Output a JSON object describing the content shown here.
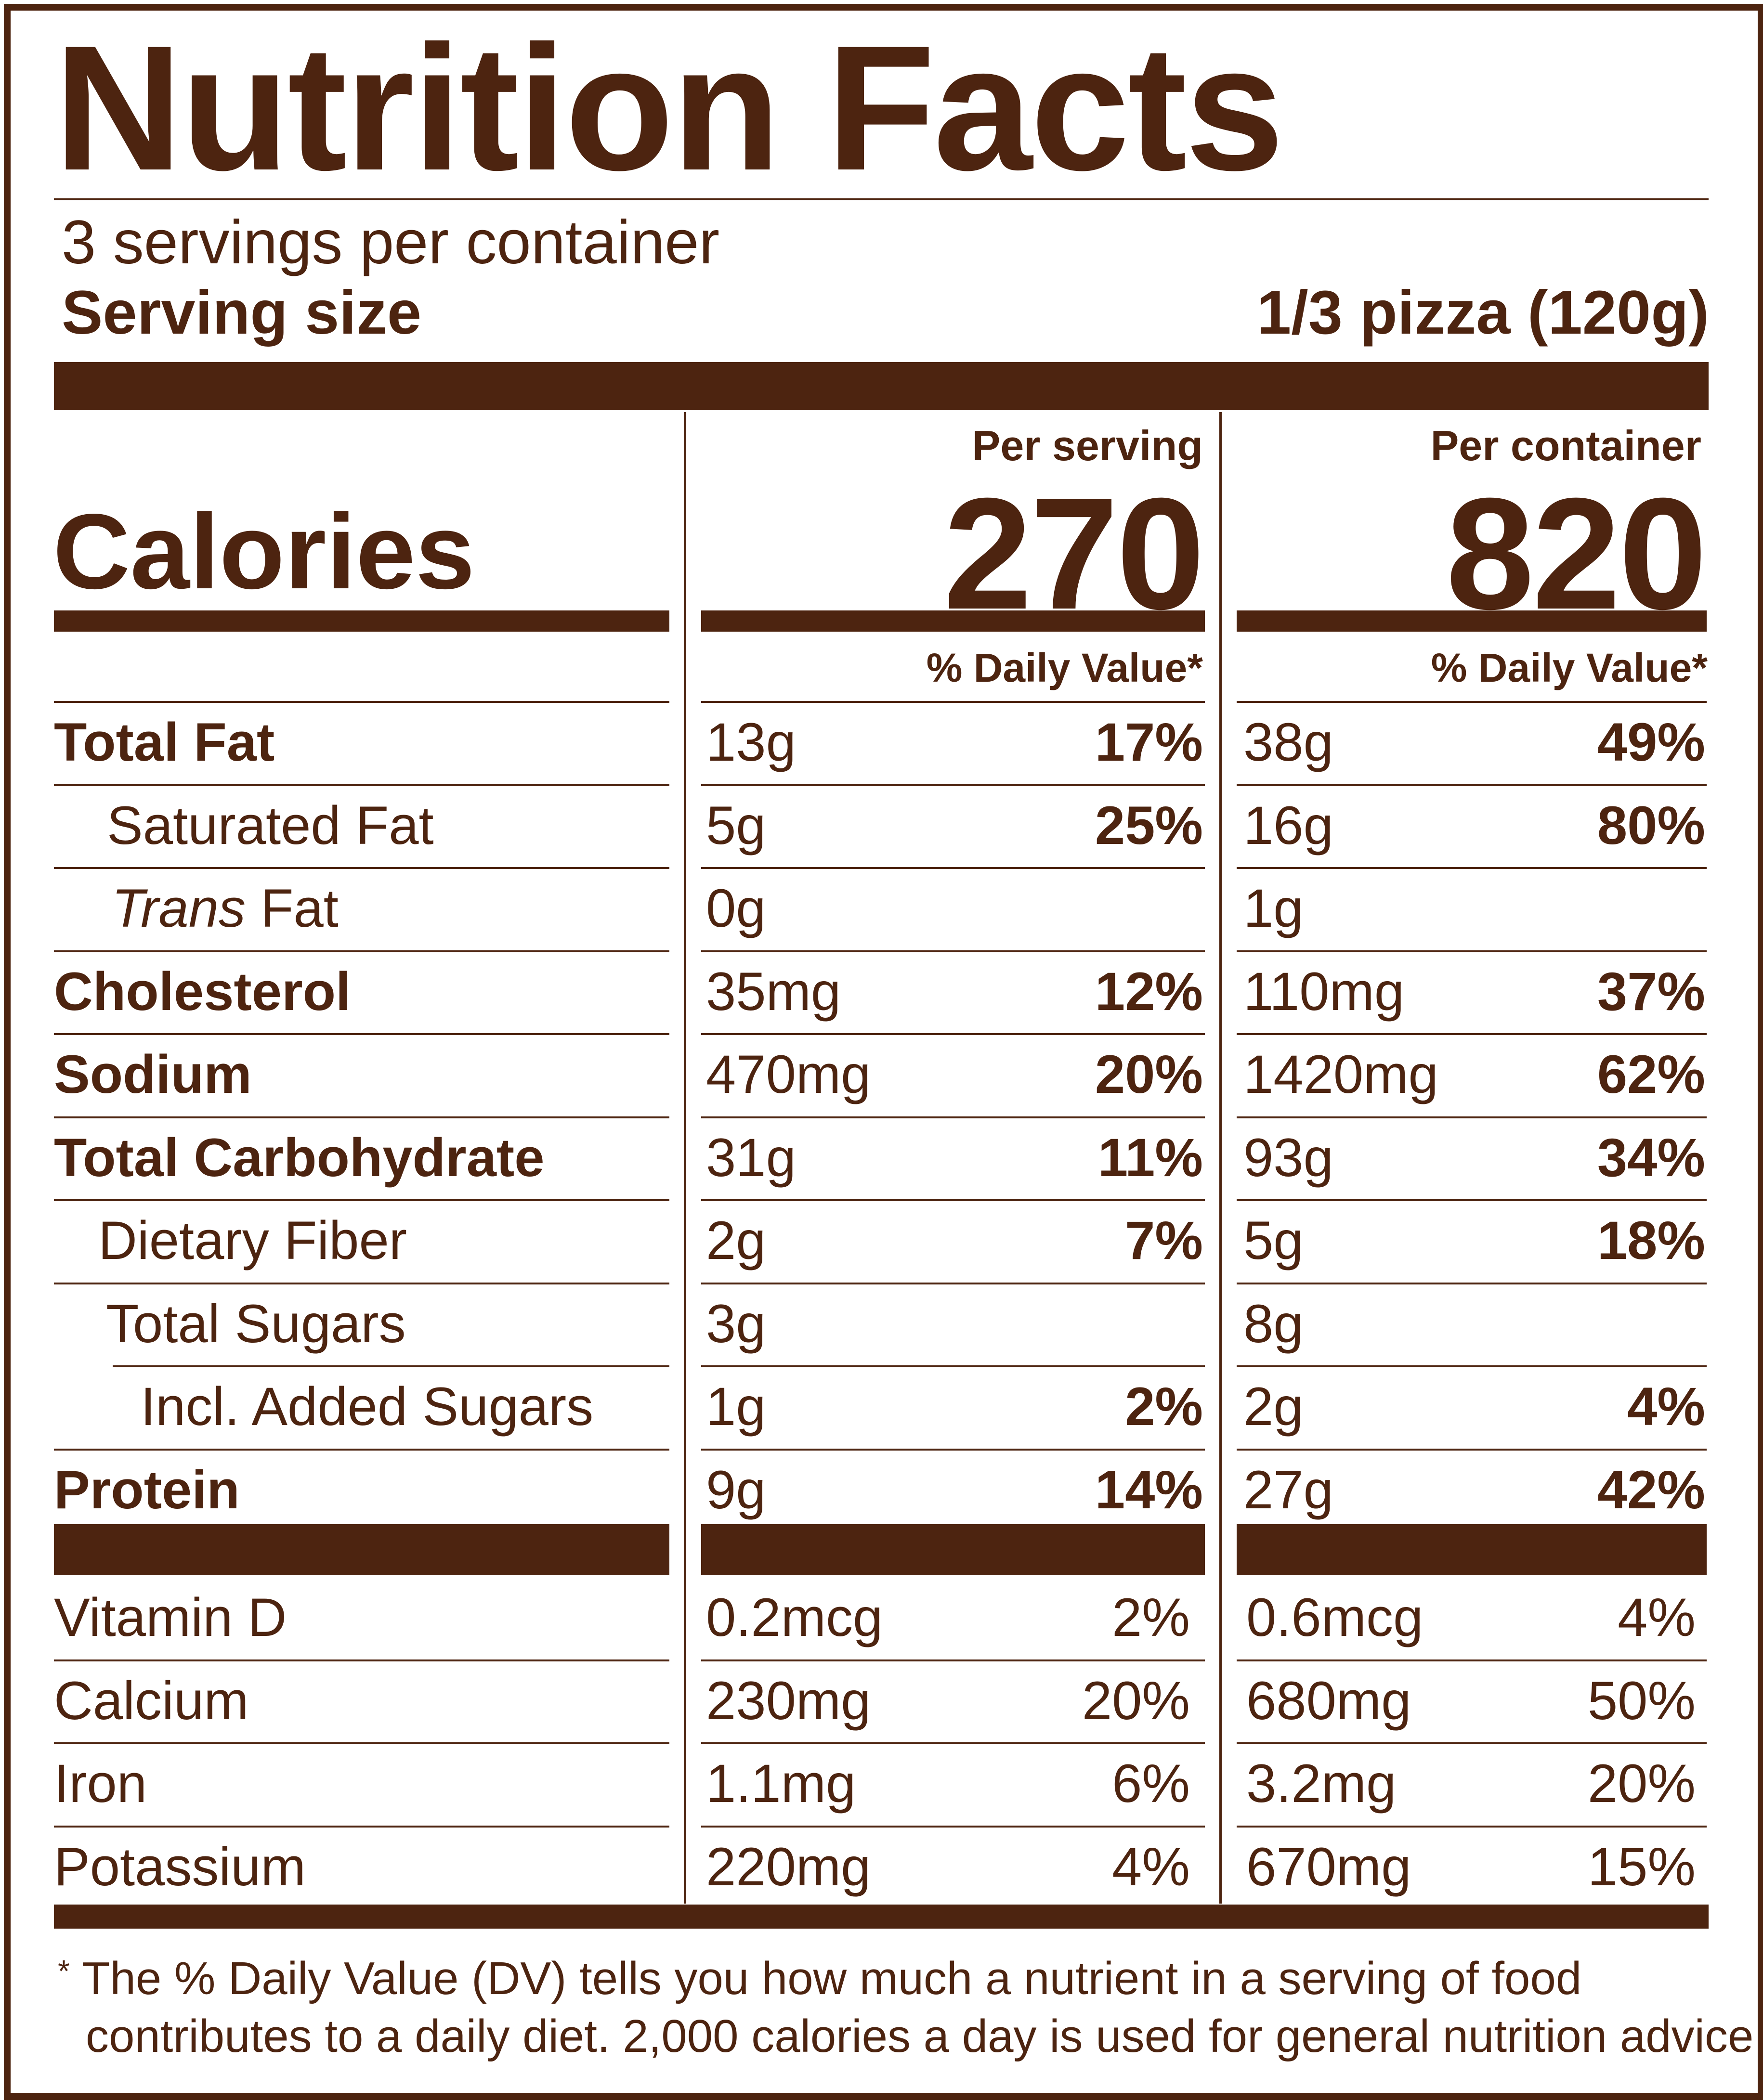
{
  "label": {
    "title": "Nutrition Facts",
    "servings_per_container": "3 servings per container",
    "serving_size_label": "Serving size",
    "serving_size_value": "1/3 pizza (120g)"
  },
  "calories": {
    "label": "Calories",
    "per_serving_header": "Per serving",
    "per_container_header": "Per container",
    "per_serving_value": "270",
    "per_container_value": "820"
  },
  "daily_value_header": "% Daily Value*",
  "nutrients": [
    {
      "name": "Total Fat",
      "italic_prefix": "",
      "serving_amount": "13g",
      "serving_dv": "17%",
      "container_amount": "38g",
      "container_dv": "49%"
    },
    {
      "name": "Saturated Fat",
      "italic_prefix": "",
      "serving_amount": "5g",
      "serving_dv": "25%",
      "container_amount": "16g",
      "container_dv": "80%"
    },
    {
      "name": " Fat",
      "italic_prefix": "Trans",
      "serving_amount": "0g",
      "serving_dv": "",
      "container_amount": "1g",
      "container_dv": ""
    },
    {
      "name": "Cholesterol",
      "italic_prefix": "",
      "serving_amount": "35mg",
      "serving_dv": "12%",
      "container_amount": "110mg",
      "container_dv": "37%"
    },
    {
      "name": "Sodium",
      "italic_prefix": "",
      "serving_amount": "470mg",
      "serving_dv": "20%",
      "container_amount": "1420mg",
      "container_dv": "62%"
    },
    {
      "name": "Total Carbohydrate",
      "italic_prefix": "",
      "serving_amount": "31g",
      "serving_dv": "11%",
      "container_amount": "93g",
      "container_dv": "34%"
    },
    {
      "name": "Dietary Fiber",
      "italic_prefix": "",
      "serving_amount": "2g",
      "serving_dv": "7%",
      "container_amount": "5g",
      "container_dv": "18%"
    },
    {
      "name": "Total Sugars",
      "italic_prefix": "",
      "serving_amount": "3g",
      "serving_dv": "",
      "container_amount": "8g",
      "container_dv": ""
    },
    {
      "name": "Incl. Added Sugars",
      "italic_prefix": "",
      "serving_amount": "1g",
      "serving_dv": "2%",
      "container_amount": "2g",
      "container_dv": "4%"
    },
    {
      "name": "Protein",
      "italic_prefix": "",
      "serving_amount": "9g",
      "serving_dv": "14%",
      "container_amount": "27g",
      "container_dv": "42%"
    }
  ],
  "vitamins": [
    {
      "name": "Vitamin D",
      "serving_amount": "0.2mcg",
      "serving_dv": "2%",
      "container_amount": "0.6mcg",
      "container_dv": "4%"
    },
    {
      "name": "Calcium",
      "serving_amount": "230mg",
      "serving_dv": "20%",
      "container_amount": "680mg",
      "container_dv": "50%"
    },
    {
      "name": "Iron",
      "serving_amount": "1.1mg",
      "serving_dv": "6%",
      "container_amount": "3.2mg",
      "container_dv": "20%"
    },
    {
      "name": "Potassium",
      "serving_amount": "220mg",
      "serving_dv": "4%",
      "container_amount": "670mg",
      "container_dv": "15%"
    }
  ],
  "footnote": {
    "asterisk": "*",
    "line1": "The % Daily Value (DV) tells you how much a nutrient in a serving of food",
    "line2": "contributes to a daily diet. 2,000 calories a day is used for general nutrition advice."
  },
  "colors": {
    "ink": "#4d2410",
    "background": "#ffffff"
  }
}
